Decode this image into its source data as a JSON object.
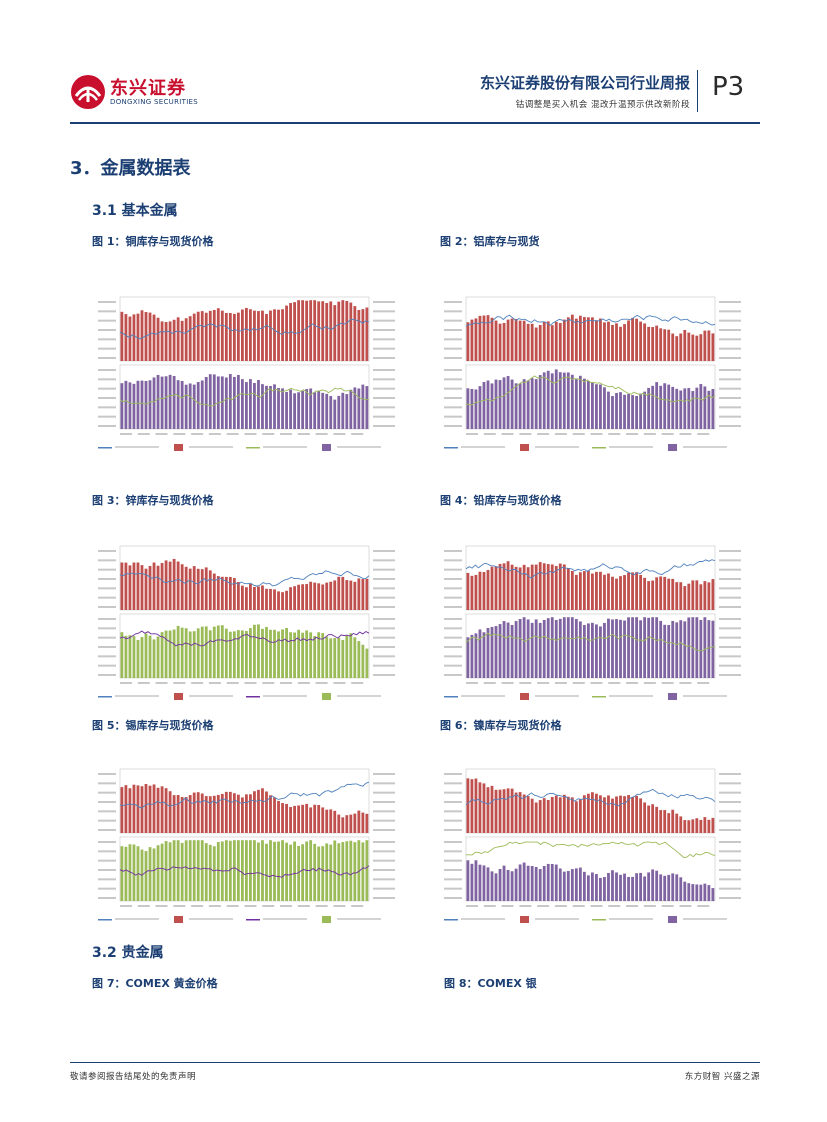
{
  "header": {
    "logo_cn": "东兴证券",
    "logo_en": "DONGXING SECURITIES",
    "title": "东兴证券股份有限公司行业周报",
    "subtitle": "钴调整是买入机会 混改升温预示供改新阶段",
    "page": "P3"
  },
  "section": {
    "title": "3．金属数据表",
    "sub1": "3.1 基本金属",
    "sub2": "3.2 贵金属"
  },
  "figures": [
    {
      "caption": "图 1：铜库存与现货价格",
      "scheme": "copper"
    },
    {
      "caption": "图 2：铝库存与现货",
      "scheme": "aluminum"
    },
    {
      "caption": "图 3：锌库存与现货价格",
      "scheme": "zinc"
    },
    {
      "caption": "图 4：铅库存与现货价格",
      "scheme": "lead"
    },
    {
      "caption": "图 5：锡库存与现货价格",
      "scheme": "tin"
    },
    {
      "caption": "图 6：镍库存与现货价格",
      "scheme": "nickel"
    },
    {
      "caption": "图 7：COMEX 黄金价格"
    },
    {
      "caption": "图 8：COMEX 银"
    }
  ],
  "colors": {
    "brand": "#1c3f73",
    "logo_red": "#c8102e",
    "bar_red": "#c0504d",
    "bar_purple": "#8064a2",
    "bar_green": "#9bbb59",
    "line_blue": "#4f81bd",
    "line_olive": "#9bbb59",
    "line_purple": "#7030a0"
  },
  "footer": {
    "left": "敬请参阅报告结尾处的免责声明",
    "right": "东方财智 兴盛之源"
  }
}
